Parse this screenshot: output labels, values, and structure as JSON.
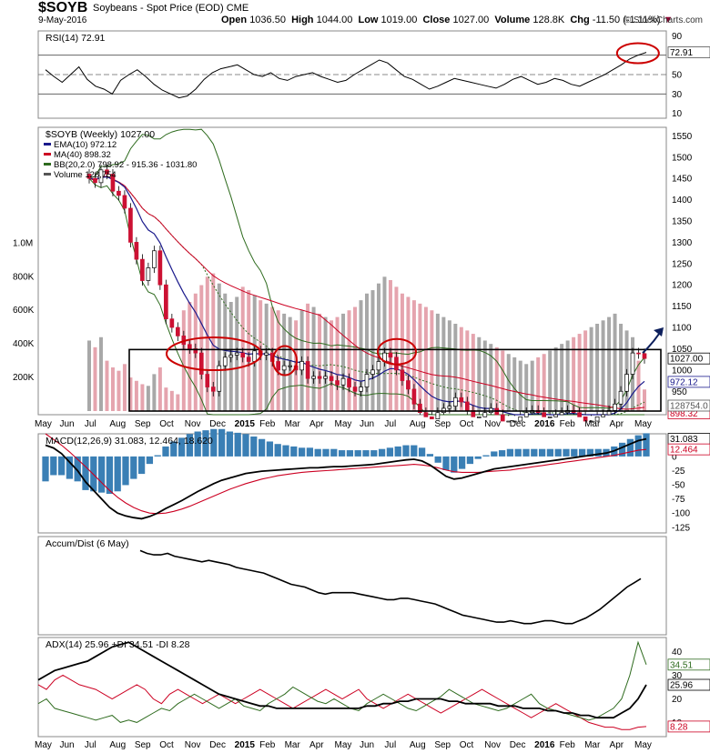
{
  "header": {
    "symbol": "$SOYB",
    "description": "Soybeans - Spot Price (EOD)",
    "exchange": "CME",
    "date": "9-May-2016",
    "open_label": "Open",
    "open": "1036.50",
    "high_label": "High",
    "high": "1044.00",
    "low_label": "Low",
    "low": "1019.00",
    "close_label": "Close",
    "close": "1027.00",
    "volume_label": "Volume",
    "volume": "128.8K",
    "chg_label": "Chg",
    "chg": "-11.50 (-1.11%)",
    "copyright": "© StockCharts.com"
  },
  "x_axis_labels": [
    "May",
    "Jun",
    "Jul",
    "Aug",
    "Sep",
    "Oct",
    "Nov",
    "Dec",
    "2015",
    "Feb",
    "Mar",
    "Apr",
    "May",
    "Jun",
    "Jul",
    "Aug",
    "Sep",
    "Oct",
    "Nov",
    "Dec",
    "2016",
    "Feb",
    "Mar",
    "Apr",
    "May"
  ],
  "colors": {
    "up": "#000000",
    "down": "#cc1133",
    "ema": "#1a1a8c",
    "ma": "#cc0022",
    "bb": "#2e6b1e",
    "vol_up": "#a8a8a8",
    "vol_down": "#e5a4ae",
    "macd_hist": "#3a7fb5",
    "annotation": "#cc0000",
    "arrow": "#0d1f5c"
  },
  "chart_data": [
    {
      "type": "line",
      "title": "RSI(14) 72.91",
      "yticks": [
        "90",
        "70",
        "50",
        "30",
        "10"
      ],
      "ylim": [
        5,
        95
      ],
      "guides": [
        70,
        50,
        30
      ],
      "last_label": "72.91",
      "values": [
        55,
        48,
        42,
        50,
        58,
        45,
        38,
        35,
        30,
        44,
        50,
        55,
        48,
        40,
        34,
        30,
        26,
        28,
        35,
        45,
        52,
        56,
        58,
        60,
        55,
        50,
        48,
        52,
        46,
        44,
        48,
        50,
        52,
        48,
        45,
        42,
        44,
        50,
        55,
        60,
        65,
        62,
        55,
        48,
        45,
        40,
        35,
        38,
        42,
        46,
        44,
        42,
        40,
        38,
        36,
        40,
        45,
        48,
        44,
        40,
        42,
        46,
        44,
        40,
        38,
        42,
        46,
        50,
        55,
        60,
        66,
        70,
        72.91
      ]
    },
    {
      "type": "candlestick",
      "title": "$SOYB (Weekly) 1027.00",
      "legend": [
        "EMA(10) 972.12",
        "MA(40) 898.32",
        "BB(20,2.0) 798.92 - 915.36 - 1031.80",
        "Volume 128,754"
      ],
      "yticks": [
        "1550",
        "1500",
        "1450",
        "1400",
        "1350",
        "1300",
        "1250",
        "1200",
        "1150",
        "1100",
        "1050",
        "1000",
        "950"
      ],
      "ylim": [
        895,
        1570
      ],
      "volume_ticks": [
        "1.0M",
        "800K",
        "600K",
        "400K",
        "200K"
      ],
      "volume_max": 1300000,
      "price_labels": [
        "1027.00",
        "972.12",
        "915.36",
        "898.32",
        "128754.0"
      ],
      "closes": [
        1450,
        1440,
        1470,
        1460,
        1420,
        1410,
        1380,
        1300,
        1260,
        1210,
        1240,
        1280,
        1200,
        1120,
        1100,
        1080,
        1060,
        1050,
        1040,
        990,
        960,
        950,
        1010,
        1030,
        1035,
        1040,
        1030,
        1020,
        1045,
        1035,
        1040,
        1020,
        1000,
        1010,
        1010,
        1000,
        1020,
        980,
        985,
        980,
        985,
        975,
        965,
        980,
        960,
        950,
        960,
        990,
        1000,
        1020,
        1040,
        1030,
        1000,
        975,
        955,
        920,
        900,
        890,
        885,
        900,
        910,
        915,
        935,
        925,
        905,
        890,
        890,
        900,
        910,
        895,
        880,
        880,
        880,
        890,
        900,
        905,
        900,
        890,
        890,
        895,
        900,
        905,
        900,
        890,
        880,
        880,
        890,
        895,
        905,
        920,
        950,
        990,
        1040,
        1038.5,
        1027
      ],
      "volume": [
        420000,
        380000,
        440000,
        300000,
        260000,
        240000,
        280000,
        200000,
        180000,
        160000,
        150000,
        220000,
        260000,
        140000,
        120000,
        100000,
        600000,
        650000,
        700000,
        750000,
        800000,
        820000,
        760000,
        700000,
        650000,
        680000,
        740000,
        720000,
        690000,
        660000,
        640000,
        620000,
        600000,
        580000,
        560000,
        540000,
        600000,
        640000,
        620000,
        580000,
        560000,
        540000,
        560000,
        580000,
        600000,
        620000,
        660000,
        700000,
        720000,
        760000,
        800000,
        780000,
        740000,
        700000,
        680000,
        660000,
        640000,
        620000,
        600000,
        580000,
        560000,
        540000,
        520000,
        500000,
        480000,
        460000,
        440000,
        420000,
        400000,
        380000,
        360000,
        340000,
        320000,
        300000,
        280000,
        300000,
        320000,
        340000,
        360000,
        380000,
        400000,
        420000,
        440000,
        460000,
        480000,
        500000,
        520000,
        540000,
        560000,
        580000,
        520000,
        480000,
        440000,
        300000,
        128754
      ]
    },
    {
      "type": "line",
      "title": "MACD(12,26,9) 31.083, 12.464, 18.620",
      "yticks": [
        "25",
        "0",
        "-25",
        "-50",
        "-75",
        "-100",
        "-125"
      ],
      "ylim": [
        -135,
        40
      ],
      "right_labels": [
        "31.083",
        "12.464"
      ],
      "macd": [
        20,
        15,
        5,
        -10,
        -25,
        -45,
        -60,
        -75,
        -90,
        -100,
        -105,
        -108,
        -110,
        -106,
        -100,
        -92,
        -85,
        -78,
        -70,
        -62,
        -55,
        -48,
        -42,
        -38,
        -34,
        -30,
        -28,
        -26,
        -25,
        -24,
        -23,
        -22,
        -21,
        -20,
        -20,
        -19,
        -18,
        -18,
        -17,
        -16,
        -15,
        -14,
        -12,
        -10,
        -8,
        -6,
        -5,
        -8,
        -15,
        -25,
        -35,
        -40,
        -38,
        -34,
        -30,
        -26,
        -22,
        -20,
        -18,
        -16,
        -14,
        -12,
        -10,
        -8,
        -6,
        -4,
        -2,
        0,
        2,
        4,
        6,
        10,
        16,
        22,
        28,
        31.083
      ],
      "signal": [
        40,
        30,
        20,
        8,
        -5,
        -18,
        -32,
        -46,
        -60,
        -72,
        -82,
        -90,
        -96,
        -100,
        -101,
        -100,
        -97,
        -93,
        -88,
        -82,
        -76,
        -70,
        -64,
        -58,
        -53,
        -48,
        -44,
        -40,
        -37,
        -34,
        -32,
        -30,
        -28,
        -27,
        -26,
        -25,
        -24,
        -23,
        -22,
        -21,
        -20,
        -19,
        -18,
        -17,
        -16,
        -15,
        -14,
        -15,
        -17,
        -20,
        -24,
        -27,
        -28,
        -28,
        -28,
        -27,
        -26,
        -25,
        -24,
        -22,
        -20,
        -18,
        -16,
        -14,
        -12,
        -10,
        -8,
        -6,
        -4,
        -2,
        0,
        2,
        5,
        8,
        11,
        12.464
      ],
      "histogram": [
        -20,
        -15,
        -15,
        -18,
        -20,
        -27,
        -28,
        -29,
        -30,
        -28,
        -23,
        -18,
        -14,
        -6,
        1,
        8,
        12,
        15,
        18,
        20,
        21,
        22,
        22,
        20,
        19,
        18,
        16,
        14,
        12,
        10,
        9,
        8,
        7,
        7,
        6,
        6,
        6,
        5,
        5,
        5,
        5,
        5,
        6,
        7,
        8,
        9,
        9,
        7,
        2,
        -5,
        -11,
        -13,
        -10,
        -6,
        -2,
        1,
        4,
        5,
        6,
        6,
        6,
        6,
        6,
        6,
        6,
        6,
        6,
        6,
        6,
        6,
        6,
        8,
        11,
        14,
        17,
        18.62
      ]
    },
    {
      "type": "line",
      "title": "Accum/Dist (6 May)",
      "values": [
        100,
        98,
        97,
        97,
        98,
        96,
        95,
        94,
        93,
        92,
        93,
        92,
        91,
        90,
        88,
        87,
        86,
        85,
        84,
        82,
        80,
        78,
        76,
        75,
        74,
        72,
        70,
        69,
        70,
        70,
        70,
        70,
        69,
        68,
        67,
        66,
        65,
        65,
        66,
        66,
        65,
        64,
        63,
        62,
        60,
        58,
        56,
        54,
        53,
        52,
        51,
        50,
        49,
        49,
        50,
        49,
        48,
        48,
        49,
        50,
        50,
        49,
        48,
        48,
        50,
        52,
        55,
        58,
        62,
        66,
        70,
        74,
        77,
        80
      ],
      "ylim": [
        40,
        110
      ]
    },
    {
      "type": "line",
      "title": "ADX(14) 25.96 +DI 34.51 -DI 8.28",
      "yticks": [
        "40",
        "30",
        "20",
        "10"
      ],
      "ylim": [
        4,
        46
      ],
      "right_labels": [
        "34.51",
        "25.96",
        "8.28"
      ],
      "adx": [
        28,
        30,
        32,
        33,
        34,
        35,
        36,
        38,
        40,
        42,
        43,
        44,
        42,
        40,
        38,
        36,
        34,
        32,
        30,
        28,
        26,
        24,
        22,
        21,
        20,
        19,
        18,
        17,
        17,
        16,
        16,
        16,
        16,
        16,
        16,
        16,
        16,
        16,
        16,
        16,
        17,
        17,
        18,
        18,
        19,
        19,
        20,
        20,
        20,
        20,
        19,
        19,
        18,
        18,
        18,
        18,
        17,
        17,
        17,
        16,
        16,
        16,
        15,
        15,
        14,
        14,
        13,
        13,
        12,
        12,
        12,
        14,
        16,
        20,
        25.96
      ],
      "plus_di": [
        18,
        20,
        16,
        15,
        14,
        13,
        12,
        11,
        12,
        13,
        10,
        11,
        10,
        12,
        14,
        16,
        15,
        18,
        20,
        22,
        20,
        18,
        16,
        18,
        20,
        17,
        16,
        15,
        18,
        20,
        22,
        25,
        23,
        21,
        19,
        18,
        20,
        18,
        16,
        15,
        18,
        20,
        22,
        20,
        18,
        16,
        15,
        17,
        19,
        21,
        24,
        22,
        20,
        18,
        17,
        16,
        15,
        16,
        18,
        20,
        22,
        18,
        16,
        15,
        14,
        13,
        12,
        11,
        12,
        14,
        16,
        20,
        30,
        44,
        34.51
      ],
      "minus_di": [
        26,
        24,
        28,
        30,
        28,
        26,
        25,
        24,
        22,
        20,
        22,
        24,
        26,
        24,
        20,
        18,
        22,
        24,
        22,
        20,
        18,
        20,
        22,
        20,
        18,
        20,
        22,
        24,
        22,
        20,
        18,
        16,
        18,
        20,
        22,
        24,
        22,
        20,
        22,
        24,
        20,
        18,
        16,
        18,
        20,
        22,
        20,
        18,
        16,
        14,
        16,
        18,
        20,
        22,
        24,
        22,
        20,
        18,
        16,
        14,
        12,
        14,
        16,
        18,
        16,
        14,
        12,
        10,
        9,
        8,
        8,
        7,
        7,
        8,
        8.28
      ]
    }
  ]
}
